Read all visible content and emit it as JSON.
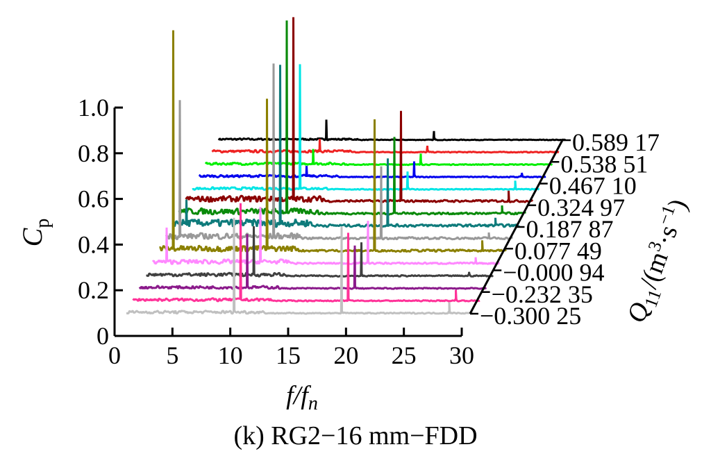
{
  "chart_data": {
    "type": "line",
    "layout": "waterfall",
    "xlabel": "f/f_n",
    "ylabel": "C_p",
    "zlabel": "Q_11/(m^3·s^-1)",
    "xlim": [
      0,
      30
    ],
    "ylim": [
      0,
      1.0
    ],
    "x_ticks": [
      "0",
      "5",
      "10",
      "15",
      "20",
      "25",
      "30"
    ],
    "y_ticks": [
      "0",
      "0.2",
      "0.4",
      "0.6",
      "0.8",
      "1.0"
    ],
    "z_tick_labels": [
      "0.589 17",
      "0.538 51",
      "0.467 10",
      "0.324 97",
      "0.187 87",
      "0.077 49",
      "−0.000 94",
      "−0.232 35",
      "−0.300 25"
    ],
    "caption": "(k) RG2−16 mm−FDD",
    "series": [
      {
        "color": "#c0c0c0",
        "noise": 0.01,
        "peaks": [
          {
            "x": 9.3,
            "y": 0.42
          },
          {
            "x": 18.6,
            "y": 0.38
          },
          {
            "x": 27.9,
            "y": 0.05
          }
        ]
      },
      {
        "color": "#ff3399",
        "noise": 0.01,
        "peaks": [
          {
            "x": 9.3,
            "y": 0.43
          },
          {
            "x": 18.6,
            "y": 0.3
          },
          {
            "x": 27.9,
            "y": 0.05
          }
        ]
      },
      {
        "color": "#8b1a8b",
        "noise": 0.01,
        "peaks": [
          {
            "x": 9.3,
            "y": 0.24
          },
          {
            "x": 18.6,
            "y": 0.19
          }
        ]
      },
      {
        "color": "#404040",
        "noise": 0.012,
        "peaks": [
          {
            "x": 9.3,
            "y": 0.22
          },
          {
            "x": 18.6,
            "y": 0.15
          },
          {
            "x": 27.9,
            "y": 0.02
          }
        ]
      },
      {
        "color": "#ff88ff",
        "noise": 0.015,
        "peaks": [
          {
            "x": 1.2,
            "y": 0.16
          },
          {
            "x": 9.3,
            "y": 0.25
          },
          {
            "x": 18.6,
            "y": 0.19
          },
          {
            "x": 27.9,
            "y": 0.03
          }
        ]
      },
      {
        "color": "#8b8000",
        "noise": 0.02,
        "peaks": [
          {
            "x": 1.2,
            "y": 0.97
          },
          {
            "x": 9.3,
            "y": 0.67
          },
          {
            "x": 18.6,
            "y": 0.58
          },
          {
            "x": 27.9,
            "y": 0.05
          }
        ]
      },
      {
        "color": "#999999",
        "noise": 0.02,
        "peaks": [
          {
            "x": 1.2,
            "y": 0.61
          },
          {
            "x": 9.3,
            "y": 0.77
          },
          {
            "x": 18.6,
            "y": 0.32
          },
          {
            "x": 27.9,
            "y": 0.03
          }
        ]
      },
      {
        "color": "#0e7b7b",
        "noise": 0.025,
        "peaks": [
          {
            "x": 1.2,
            "y": 0.12
          },
          {
            "x": 9.3,
            "y": 0.71
          },
          {
            "x": 18.6,
            "y": 0.3
          },
          {
            "x": 27.9,
            "y": 0.04
          }
        ]
      },
      {
        "color": "#0a8a0a",
        "noise": 0.02,
        "peaks": [
          {
            "x": 9.3,
            "y": 0.85
          },
          {
            "x": 18.6,
            "y": 0.34
          },
          {
            "x": 27.9,
            "y": 0.04
          }
        ]
      },
      {
        "color": "#8b0000",
        "noise": 0.02,
        "peaks": [
          {
            "x": 9.3,
            "y": 0.81
          },
          {
            "x": 18.6,
            "y": 0.4
          },
          {
            "x": 27.9,
            "y": 0.05
          }
        ]
      },
      {
        "color": "#00e5e5",
        "noise": 0.008,
        "peaks": [
          {
            "x": 9.3,
            "y": 0.55
          },
          {
            "x": 18.6,
            "y": 0.08
          },
          {
            "x": 27.9,
            "y": 0.04
          }
        ]
      },
      {
        "color": "#0000ee",
        "noise": 0.008,
        "peaks": [
          {
            "x": 9.3,
            "y": 0.05
          },
          {
            "x": 18.6,
            "y": 0.07
          },
          {
            "x": 27.9,
            "y": 0.02
          }
        ]
      },
      {
        "color": "#00ee00",
        "noise": 0.008,
        "peaks": [
          {
            "x": 9.3,
            "y": 0.07
          },
          {
            "x": 18.6,
            "y": 0.05
          }
        ]
      },
      {
        "color": "#ee2222",
        "noise": 0.008,
        "peaks": [
          {
            "x": 9.3,
            "y": 0.06
          },
          {
            "x": 18.6,
            "y": 0.03
          }
        ]
      },
      {
        "color": "#000000",
        "noise": 0.006,
        "peaks": [
          {
            "x": 9.3,
            "y": 0.09
          },
          {
            "x": 18.6,
            "y": 0.04
          }
        ]
      }
    ]
  }
}
